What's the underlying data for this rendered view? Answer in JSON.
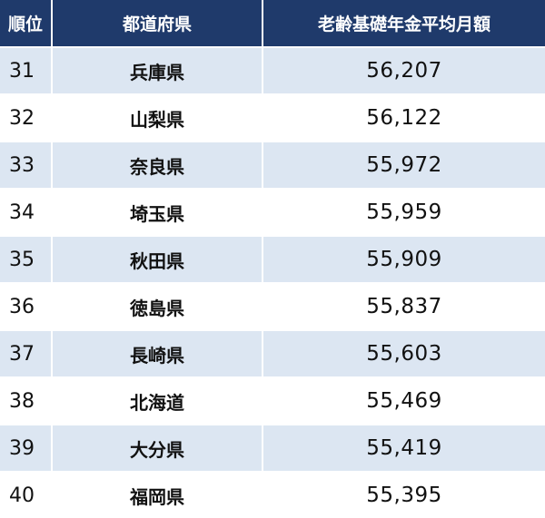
{
  "table": {
    "header": [
      "順位",
      "都道府県",
      "老齢基礎年金平均月額"
    ],
    "rows": [
      [
        "31",
        "兵庫県",
        "56,207"
      ],
      [
        "32",
        "山梨県",
        "56,122"
      ],
      [
        "33",
        "奈良県",
        "55,972"
      ],
      [
        "34",
        "埼玉県",
        "55,959"
      ],
      [
        "35",
        "秋田県",
        "55,909"
      ],
      [
        "36",
        "徳島県",
        "55,837"
      ],
      [
        "37",
        "長崎県",
        "55,603"
      ],
      [
        "38",
        "北海道",
        "55,469"
      ],
      [
        "39",
        "大分県",
        "55,419"
      ],
      [
        "40",
        "福岡県",
        "55,395"
      ]
    ]
  }
}
